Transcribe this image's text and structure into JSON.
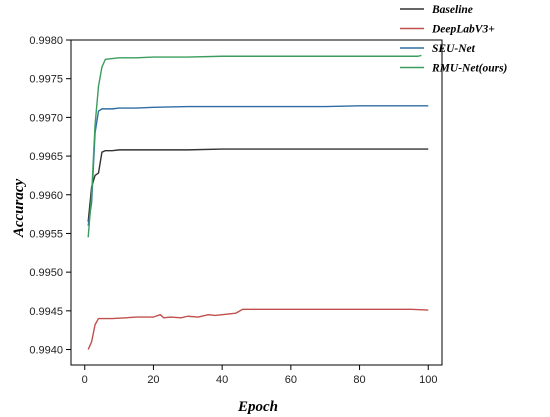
{
  "chart_data": {
    "type": "line",
    "title": "",
    "xlabel": "Epoch",
    "ylabel": "Accuracy",
    "xlim": [
      -4,
      104
    ],
    "ylim": [
      0.9938,
      0.998
    ],
    "xticks": [
      0,
      20,
      40,
      60,
      80,
      100
    ],
    "yticks": [
      0.994,
      0.9945,
      0.995,
      0.9955,
      0.996,
      0.9965,
      0.997,
      0.9975,
      0.998
    ],
    "xtick_labels": [
      "0",
      "20",
      "40",
      "60",
      "80",
      "100"
    ],
    "ytick_labels": [
      "0.9940",
      "0.9945",
      "0.9950",
      "0.9955",
      "0.9960",
      "0.9965",
      "0.9970",
      "0.9975",
      "0.9980"
    ],
    "legend_position": "top-right",
    "grid": false,
    "series": [
      {
        "name": "Baseline",
        "color": "#333333",
        "x": [
          1,
          2,
          3,
          4,
          5,
          6,
          8,
          10,
          15,
          20,
          30,
          40,
          50,
          60,
          70,
          80,
          90,
          100
        ],
        "y": [
          0.99565,
          0.9961,
          0.99625,
          0.99628,
          0.99655,
          0.99657,
          0.99657,
          0.99658,
          0.99658,
          0.99658,
          0.99658,
          0.99659,
          0.99659,
          0.99659,
          0.99659,
          0.99659,
          0.99659,
          0.99659
        ]
      },
      {
        "name": "DeepLabV3+",
        "color": "#c0504d",
        "x": [
          1,
          2,
          3,
          4,
          5,
          8,
          12,
          15,
          18,
          20,
          22,
          23,
          25,
          28,
          30,
          33,
          36,
          38,
          40,
          42,
          44,
          46,
          48,
          55,
          65,
          75,
          85,
          95,
          100
        ],
        "y": [
          0.994,
          0.9941,
          0.99432,
          0.9944,
          0.9944,
          0.9944,
          0.99441,
          0.99442,
          0.99442,
          0.99442,
          0.99445,
          0.99441,
          0.99442,
          0.99441,
          0.99443,
          0.99442,
          0.99445,
          0.99444,
          0.99445,
          0.99446,
          0.99447,
          0.99452,
          0.99452,
          0.99452,
          0.99452,
          0.99452,
          0.99452,
          0.99452,
          0.99451
        ]
      },
      {
        "name": "SEU-Net",
        "color": "#2e6da4",
        "x": [
          1,
          2,
          3,
          4,
          5,
          6,
          8,
          10,
          15,
          20,
          30,
          40,
          50,
          60,
          70,
          80,
          90,
          100
        ],
        "y": [
          0.9956,
          0.9959,
          0.9968,
          0.99708,
          0.99711,
          0.99711,
          0.99711,
          0.99712,
          0.99712,
          0.99713,
          0.99714,
          0.99714,
          0.99714,
          0.99714,
          0.99714,
          0.99715,
          0.99715,
          0.99715
        ]
      },
      {
        "name": "RMU-Net(ours)",
        "color": "#3a9d5d",
        "x": [
          1,
          2,
          3,
          4,
          5,
          6,
          8,
          10,
          15,
          20,
          30,
          40,
          50,
          60,
          70,
          80,
          90,
          97,
          98
        ],
        "y": [
          0.99545,
          0.996,
          0.9969,
          0.9974,
          0.99765,
          0.99775,
          0.99776,
          0.99777,
          0.99777,
          0.99778,
          0.99778,
          0.99779,
          0.99779,
          0.99779,
          0.99779,
          0.99779,
          0.99779,
          0.99779,
          0.9978
        ]
      }
    ]
  }
}
